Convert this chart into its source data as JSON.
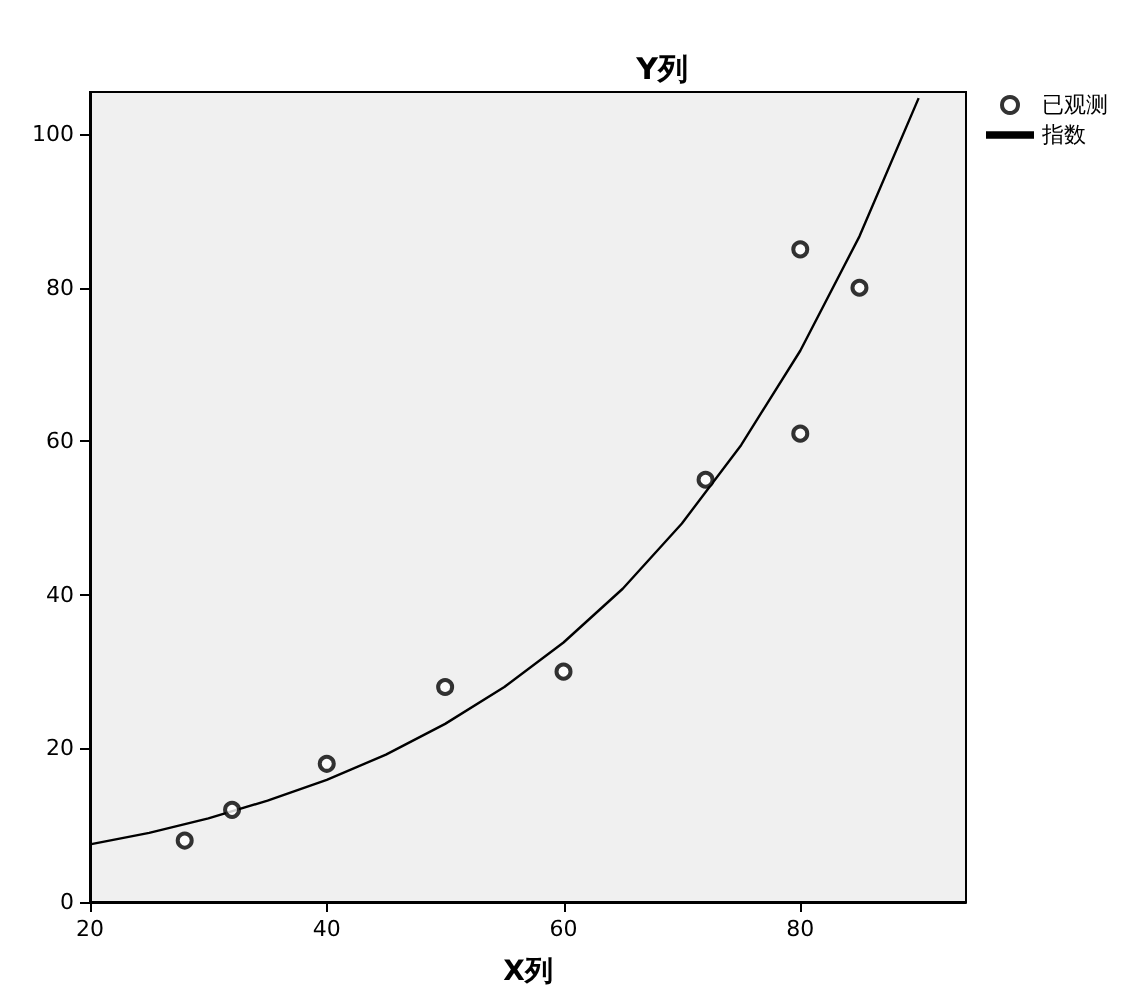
{
  "chart_data": {
    "type": "scatter",
    "title": "Y列",
    "xlabel": "X列",
    "xlim": [
      20,
      94
    ],
    "xticks": [
      20,
      40,
      60,
      80
    ],
    "ylim": [
      0,
      105.5
    ],
    "yticks": [
      0,
      20,
      40,
      60,
      80,
      100
    ],
    "grid": false,
    "legend": "top right",
    "series": [
      {
        "name": "已观测",
        "marker": "circle",
        "color": "#000000",
        "x": [
          28,
          32,
          40,
          50,
          60,
          72,
          80,
          80,
          85
        ],
        "values": [
          8,
          12,
          18,
          28,
          30,
          55,
          85,
          61,
          80
        ]
      },
      {
        "name": "指数",
        "type": "line",
        "marker": "none",
        "line_style": "solid",
        "color": "#000000",
        "x": [
          20,
          25,
          30,
          35,
          40,
          45,
          50,
          55,
          60,
          65,
          70,
          75,
          80,
          85,
          90
        ],
        "values": [
          7.5,
          9.0,
          10.9,
          13.2,
          15.9,
          19.2,
          23.2,
          28.0,
          33.8,
          40.8,
          49.3,
          59.5,
          71.8,
          86.7,
          104.7
        ]
      }
    ]
  }
}
